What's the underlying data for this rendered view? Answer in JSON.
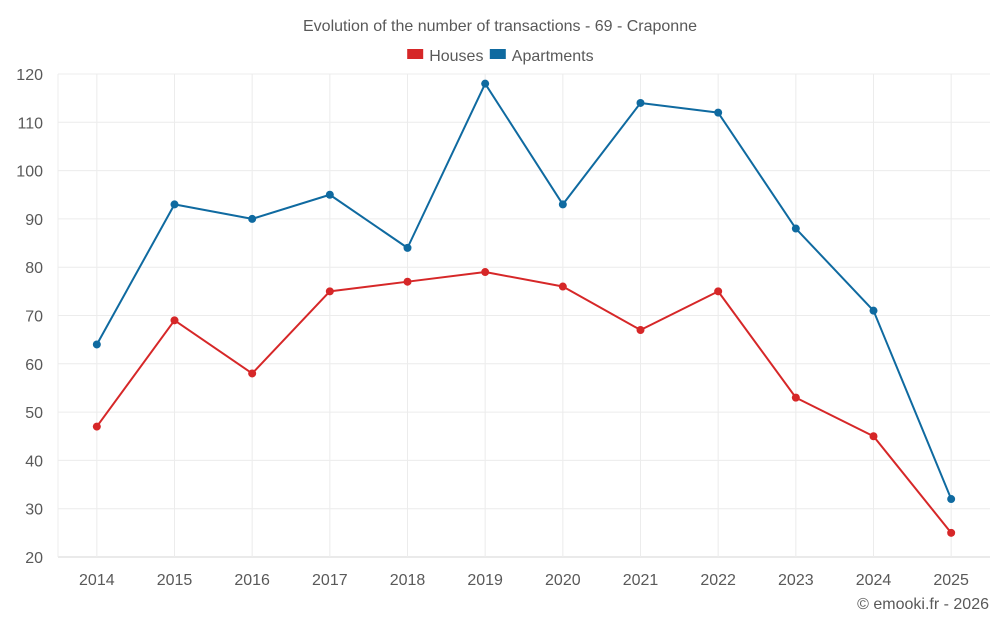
{
  "chart_data": {
    "type": "line",
    "title": "Evolution of the number of transactions - 69 - Craponne",
    "xlabel": "",
    "ylabel": "",
    "categories": [
      "2014",
      "2015",
      "2016",
      "2017",
      "2018",
      "2019",
      "2020",
      "2021",
      "2022",
      "2023",
      "2024",
      "2025"
    ],
    "ylim": [
      20,
      120
    ],
    "yticks": [
      20,
      30,
      40,
      50,
      60,
      70,
      80,
      90,
      100,
      110,
      120
    ],
    "grid": true,
    "legend_position": "top-center",
    "series": [
      {
        "name": "Houses",
        "color": "#d62728",
        "values": [
          47,
          69,
          58,
          75,
          77,
          79,
          76,
          67,
          75,
          53,
          45,
          25
        ]
      },
      {
        "name": "Apartments",
        "color": "#0f6aa0",
        "values": [
          64,
          93,
          90,
          95,
          84,
          118,
          93,
          114,
          112,
          88,
          71,
          32
        ]
      }
    ]
  },
  "credit": "© emooki.fr - 2026"
}
